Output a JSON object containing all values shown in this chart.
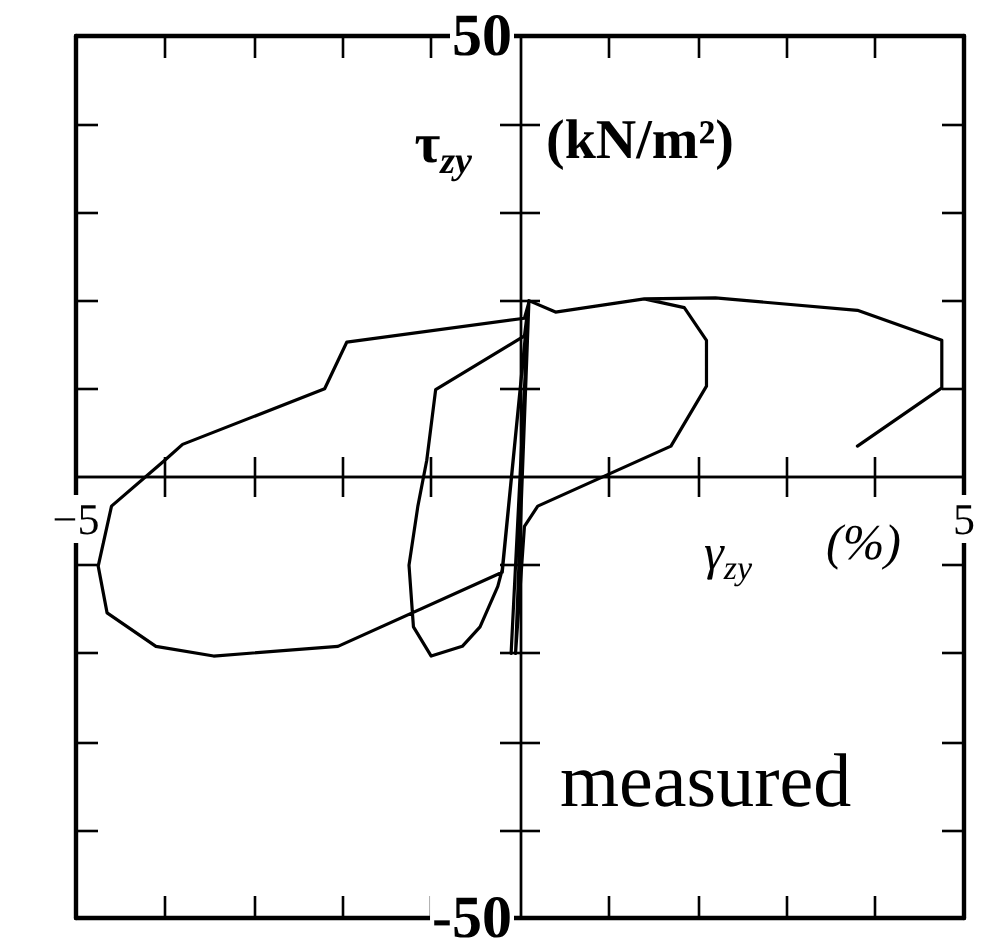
{
  "chart_data": {
    "type": "line",
    "xlabel": "γ$_{zy}$ (%)",
    "ylabel": "τ$_{zy}$ (kN/m²)",
    "annotations": [
      "measured"
    ],
    "xlim": [
      -5,
      5
    ],
    "xticks": [
      {
        "value": -5,
        "label": "−5"
      },
      {
        "value": -4,
        "label": null
      },
      {
        "value": -3,
        "label": null
      },
      {
        "value": -2,
        "label": null
      },
      {
        "value": -1,
        "label": null
      },
      {
        "value": 1,
        "label": null
      },
      {
        "value": 2,
        "label": null
      },
      {
        "value": 3,
        "label": null
      },
      {
        "value": 4,
        "label": null
      },
      5
    ],
    "ylim": [
      -50,
      50
    ],
    "yticks": [
      -50,
      {
        "value": -40,
        "label": null
      },
      {
        "value": -30,
        "label": null
      },
      {
        "value": -20,
        "label": null
      },
      {
        "value": -10,
        "label": null
      },
      {
        "value": 10,
        "label": null
      },
      {
        "value": 20,
        "label": null
      },
      {
        "value": 30,
        "label": null
      },
      {
        "value": 40,
        "label": null
      },
      50
    ],
    "color": "#000000",
    "x": [
      0,
      0.1,
      -0.1,
      0.1,
      -0.05,
      0.1,
      0.05,
      -0.95,
      -1.05,
      -1.15,
      -1.25,
      -1.2,
      -1.0,
      -0.65,
      -0.45,
      -0.25,
      -0.2,
      0.1,
      0.4,
      1.4,
      1.85,
      2.1,
      2.1,
      1.7,
      0.2,
      0.05,
      -0.05,
      0.1,
      0.05,
      -1.95,
      -2.2,
      -3.8,
      -4.0,
      -4.6,
      -4.75,
      -4.65,
      -4.1,
      -3.45,
      -2.05,
      -0.2,
      0.1,
      0.4,
      1.4,
      2.2,
      3.8,
      4.75,
      4.75,
      3.8
    ],
    "values": [
      0,
      20,
      -20,
      20,
      -20,
      20,
      16,
      9.9,
      1.9,
      -3.3,
      -10,
      -17,
      -20.3,
      -19.2,
      -17,
      -12.4,
      -10.5,
      20,
      18.7,
      20.2,
      19.2,
      15.5,
      10.3,
      3.5,
      -3.3,
      -5.6,
      -20,
      19.8,
      18,
      15.3,
      10,
      3.7,
      1.9,
      -3.3,
      -10.1,
      -15.4,
      -19.2,
      -20.3,
      -19.2,
      -10.8,
      20,
      18.7,
      20.2,
      20.3,
      18.9,
      15.5,
      10.1,
      3.5
    ]
  }
}
